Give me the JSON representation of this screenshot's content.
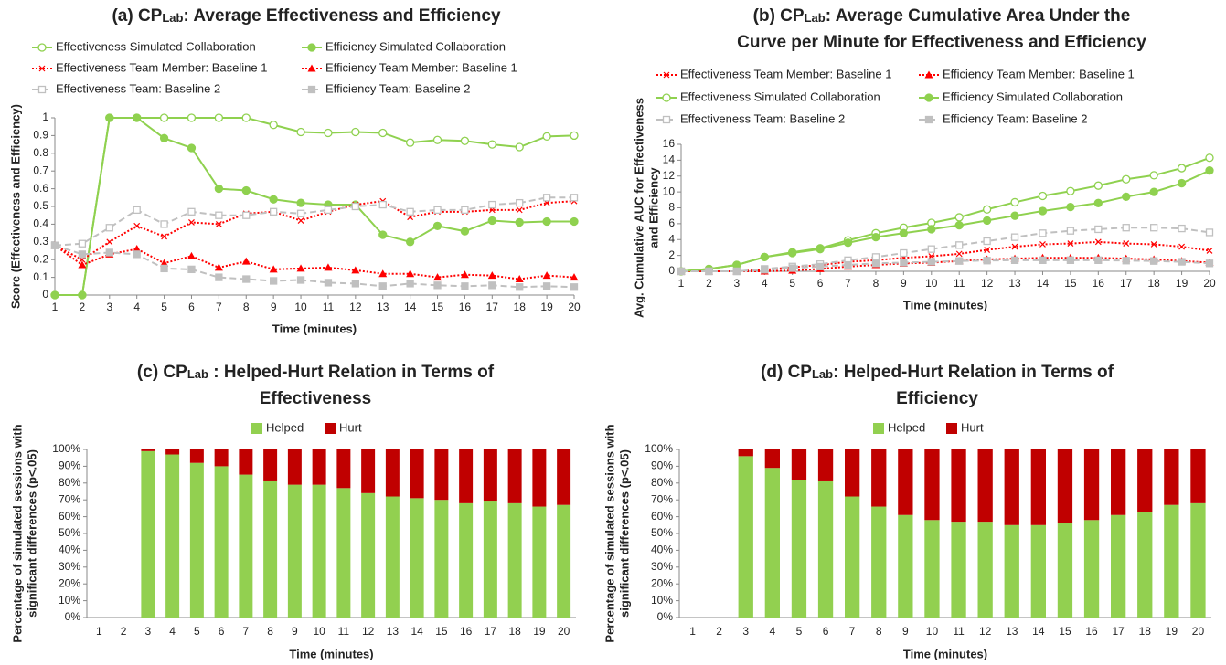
{
  "chart_data": [
    {
      "type": "line",
      "title": [
        "(a) CP",
        "Lab",
        ": Average Effectiveness and Efficiency"
      ],
      "xlabel": "Time (minutes)",
      "ylabel": [
        "Score (Effectiveness and Efficiency)"
      ],
      "x": [
        1,
        2,
        3,
        4,
        5,
        6,
        7,
        8,
        9,
        10,
        11,
        12,
        13,
        14,
        15,
        16,
        17,
        18,
        19,
        20
      ],
      "xlim": [
        1,
        20
      ],
      "xticks": [
        1,
        2,
        3,
        4,
        5,
        6,
        7,
        8,
        9,
        10,
        11,
        12,
        13,
        14,
        15,
        16,
        17,
        18,
        19,
        20
      ],
      "ylim": [
        0,
        1
      ],
      "yticks": [
        0,
        0.1,
        0.2,
        0.3,
        0.4,
        0.5,
        0.6,
        0.7,
        0.8,
        0.9,
        1
      ],
      "grid": false,
      "series": [
        {
          "name": "Effectiveness Simulated Collaboration",
          "color": "#8fd14f",
          "marker": "circle-open",
          "dash": "solid",
          "values": [
            0,
            0,
            1,
            1,
            1,
            1,
            1,
            1,
            0.96,
            0.92,
            0.915,
            0.92,
            0.915,
            0.86,
            0.875,
            0.87,
            0.85,
            0.835,
            0.895,
            0.9
          ]
        },
        {
          "name": "Efficiency Simulated Collaboration",
          "color": "#8fd14f",
          "marker": "circle",
          "dash": "solid",
          "values": [
            0,
            0,
            1,
            1,
            0.885,
            0.83,
            0.6,
            0.59,
            0.54,
            0.52,
            0.51,
            0.51,
            0.34,
            0.3,
            0.39,
            0.36,
            0.42,
            0.41,
            0.415,
            0.415
          ]
        },
        {
          "name": "Effectiveness Team Member: Baseline 1",
          "color": "#ff0000",
          "marker": "x",
          "dash": "dotted",
          "values": [
            0.28,
            0.2,
            0.3,
            0.39,
            0.33,
            0.41,
            0.4,
            0.46,
            0.47,
            0.42,
            0.47,
            0.51,
            0.53,
            0.44,
            0.47,
            0.47,
            0.48,
            0.48,
            0.52,
            0.53
          ]
        },
        {
          "name": "Efficiency Team Member: Baseline 1",
          "color": "#ff0000",
          "marker": "triangle",
          "dash": "dotted",
          "values": [
            0.28,
            0.17,
            0.23,
            0.26,
            0.18,
            0.22,
            0.155,
            0.19,
            0.145,
            0.15,
            0.155,
            0.14,
            0.12,
            0.12,
            0.1,
            0.115,
            0.11,
            0.09,
            0.11,
            0.1
          ]
        },
        {
          "name": "Effectiveness Team: Baseline 2",
          "color": "#c0c0c0",
          "marker": "square-open",
          "dash": "dashed",
          "values": [
            0.28,
            0.29,
            0.38,
            0.48,
            0.4,
            0.47,
            0.45,
            0.45,
            0.47,
            0.46,
            0.48,
            0.5,
            0.51,
            0.47,
            0.48,
            0.48,
            0.51,
            0.52,
            0.55,
            0.55
          ]
        },
        {
          "name": "Efficiency Team: Baseline 2",
          "color": "#c0c0c0",
          "marker": "square",
          "dash": "dashed",
          "values": [
            0.28,
            0.23,
            0.24,
            0.23,
            0.15,
            0.145,
            0.1,
            0.09,
            0.08,
            0.085,
            0.07,
            0.065,
            0.05,
            0.065,
            0.055,
            0.05,
            0.055,
            0.045,
            0.05,
            0.045
          ]
        }
      ]
    },
    {
      "type": "line",
      "title": [
        "(b) CP",
        "Lab",
        ": Average Cumulative Area Under the",
        "Curve per Minute for Effectiveness and Efficiency"
      ],
      "xlabel": "Time (minutes)",
      "ylabel": [
        "Avg. Cumulative AUC for Effectiveness",
        "and Efficiency"
      ],
      "x": [
        1,
        2,
        3,
        4,
        5,
        6,
        7,
        8,
        9,
        10,
        11,
        12,
        13,
        14,
        15,
        16,
        17,
        18,
        19,
        20
      ],
      "xlim": [
        1,
        20
      ],
      "xticks": [
        1,
        2,
        3,
        4,
        5,
        6,
        7,
        8,
        9,
        10,
        11,
        12,
        13,
        14,
        15,
        16,
        17,
        18,
        19,
        20
      ],
      "ylim": [
        0,
        16
      ],
      "yticks": [
        0,
        2,
        4,
        6,
        8,
        10,
        12,
        14,
        16
      ],
      "grid": false,
      "series": [
        {
          "name": "Effectiveness Team Member: Baseline 1",
          "color": "#ff0000",
          "marker": "x",
          "dash": "dotted",
          "values": [
            0,
            0,
            0,
            0.2,
            0.5,
            0.8,
            1.2,
            1.4,
            1.7,
            1.9,
            2.2,
            2.7,
            3.1,
            3.4,
            3.5,
            3.7,
            3.5,
            3.4,
            3.1,
            2.6
          ]
        },
        {
          "name": "Efficiency Team Member: Baseline 1",
          "color": "#ff0000",
          "marker": "triangle",
          "dash": "dotted",
          "values": [
            0,
            0,
            0,
            0,
            0.1,
            0.3,
            0.6,
            0.8,
            1,
            1.1,
            1.3,
            1.5,
            1.6,
            1.7,
            1.7,
            1.7,
            1.6,
            1.5,
            1.3,
            1.1
          ]
        },
        {
          "name": "Effectiveness Simulated Collaboration",
          "color": "#8fd14f",
          "marker": "circle-open",
          "dash": "solid",
          "values": [
            0,
            0.3,
            0.8,
            1.8,
            2.4,
            2.9,
            3.9,
            4.8,
            5.5,
            6.1,
            6.8,
            7.8,
            8.7,
            9.5,
            10.1,
            10.8,
            11.6,
            12.1,
            13,
            14.3
          ]
        },
        {
          "name": "Efficiency Simulated Collaboration",
          "color": "#8fd14f",
          "marker": "circle",
          "dash": "solid",
          "values": [
            0,
            0.3,
            0.8,
            1.8,
            2.3,
            2.8,
            3.6,
            4.3,
            4.8,
            5.3,
            5.8,
            6.4,
            7,
            7.6,
            8.1,
            8.6,
            9.4,
            10,
            11.1,
            12.7
          ]
        },
        {
          "name": "Effectiveness Team: Baseline 2",
          "color": "#c0c0c0",
          "marker": "square-open",
          "dash": "dashed",
          "values": [
            0,
            0,
            0,
            0.3,
            0.6,
            0.9,
            1.4,
            1.8,
            2.3,
            2.8,
            3.3,
            3.8,
            4.3,
            4.8,
            5.1,
            5.3,
            5.5,
            5.5,
            5.4,
            4.9
          ]
        },
        {
          "name": "Efficiency Team: Baseline 2",
          "color": "#c0c0c0",
          "marker": "square",
          "dash": "dashed",
          "values": [
            0,
            0,
            0,
            0.2,
            0.4,
            0.6,
            0.8,
            1,
            1.1,
            1.2,
            1.3,
            1.35,
            1.4,
            1.4,
            1.4,
            1.4,
            1.35,
            1.3,
            1.2,
            1
          ]
        }
      ]
    },
    {
      "type": "stacked-bar",
      "title": [
        "(c) CP",
        "Lab",
        " : Helped-Hurt Relation in Terms of",
        "Effectiveness"
      ],
      "xlabel": "Time (minutes)",
      "ylabel": [
        "Percentage of simulated sessions with",
        "significant differences (p<.05)"
      ],
      "categories": [
        "1",
        "2",
        "3",
        "4",
        "5",
        "6",
        "7",
        "8",
        "9",
        "10",
        "11",
        "12",
        "13",
        "14",
        "15",
        "16",
        "17",
        "18",
        "19",
        "20"
      ],
      "ylim": [
        0,
        100
      ],
      "yticks": [
        {
          "value": 0,
          "label": "0%"
        },
        {
          "value": 10,
          "label": "10%"
        },
        {
          "value": 20,
          "label": "20%"
        },
        {
          "value": 30,
          "label": "30%"
        },
        {
          "value": 40,
          "label": "40%"
        },
        {
          "value": 50,
          "label": "50%"
        },
        {
          "value": 60,
          "label": "60%"
        },
        {
          "value": 70,
          "label": "70%"
        },
        {
          "value": 80,
          "label": "80%"
        },
        {
          "value": 90,
          "label": "90%"
        },
        {
          "value": 100,
          "label": "100%"
        }
      ],
      "grid": false,
      "series": [
        {
          "name": "Helped",
          "color": "#92d050",
          "values": [
            null,
            null,
            99,
            97,
            92,
            90,
            85,
            81,
            79,
            79,
            77,
            74,
            72,
            71,
            70,
            68,
            69,
            68,
            66,
            67
          ]
        },
        {
          "name": "Hurt",
          "color": "#c00000",
          "values": [
            null,
            null,
            1,
            3,
            8,
            10,
            15,
            19,
            21,
            21,
            23,
            26,
            28,
            29,
            30,
            32,
            31,
            32,
            34,
            33
          ]
        }
      ]
    },
    {
      "type": "stacked-bar",
      "title": [
        "(d) CP",
        "Lab",
        ": Helped-Hurt Relation in Terms of",
        "Efficiency"
      ],
      "xlabel": "Time (minutes)",
      "ylabel": [
        "Percentage of simulated sessions with",
        "significant differences (p<.05)"
      ],
      "categories": [
        "1",
        "2",
        "3",
        "4",
        "5",
        "6",
        "7",
        "8",
        "9",
        "10",
        "11",
        "12",
        "13",
        "14",
        "15",
        "16",
        "17",
        "18",
        "19",
        "20"
      ],
      "ylim": [
        0,
        100
      ],
      "yticks": [
        {
          "value": 0,
          "label": "0%"
        },
        {
          "value": 10,
          "label": "10%"
        },
        {
          "value": 20,
          "label": "20%"
        },
        {
          "value": 30,
          "label": "30%"
        },
        {
          "value": 40,
          "label": "40%"
        },
        {
          "value": 50,
          "label": "50%"
        },
        {
          "value": 60,
          "label": "60%"
        },
        {
          "value": 70,
          "label": "70%"
        },
        {
          "value": 80,
          "label": "80%"
        },
        {
          "value": 90,
          "label": "90%"
        },
        {
          "value": 100,
          "label": "100%"
        }
      ],
      "grid": false,
      "series": [
        {
          "name": "Helped",
          "color": "#92d050",
          "values": [
            null,
            null,
            96,
            89,
            82,
            81,
            72,
            66,
            61,
            58,
            57,
            57,
            55,
            55,
            56,
            58,
            61,
            63,
            67,
            68
          ]
        },
        {
          "name": "Hurt",
          "color": "#c00000",
          "values": [
            null,
            null,
            4,
            11,
            18,
            19,
            28,
            34,
            39,
            42,
            43,
            43,
            45,
            45,
            44,
            42,
            39,
            37,
            33,
            32
          ]
        }
      ]
    }
  ]
}
